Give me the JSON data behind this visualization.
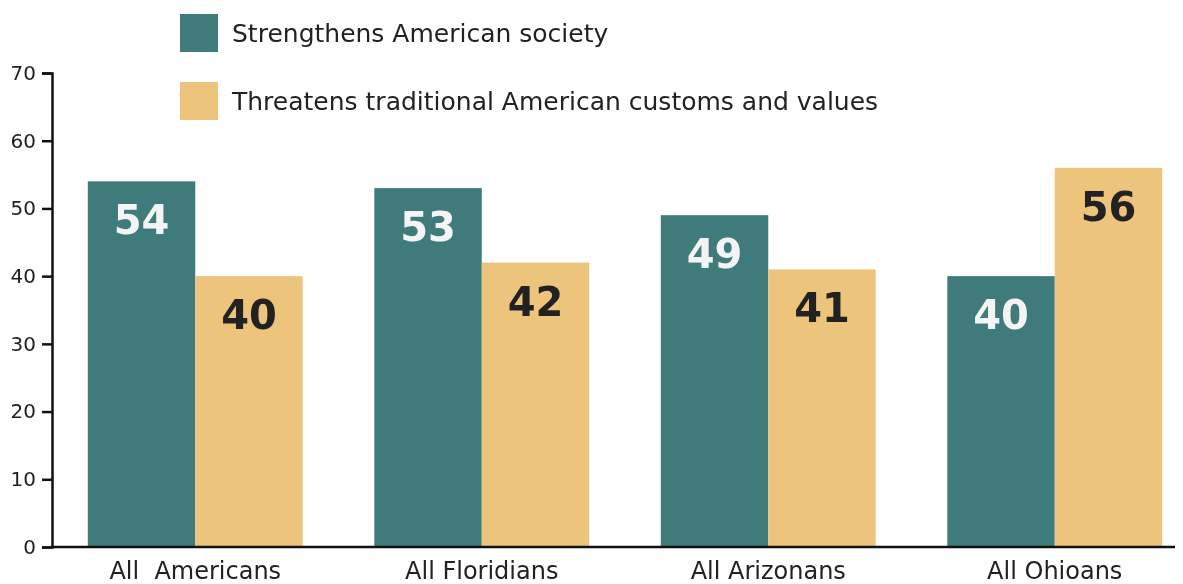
{
  "chart_data": {
    "type": "bar",
    "categories": [
      "All  Americans",
      "All Floridians",
      "All Arizonans",
      "All Ohioans"
    ],
    "series": [
      {
        "name": "Strengthens American society",
        "color": "#3e7b7a",
        "values": [
          54,
          53,
          49,
          40
        ]
      },
      {
        "name": "Threatens traditional American customs and values",
        "color": "#ecc47b",
        "values": [
          40,
          42,
          41,
          56
        ]
      }
    ],
    "ylim": [
      0,
      70
    ],
    "yticks": [
      0,
      10,
      20,
      30,
      40,
      50,
      60,
      70
    ],
    "data_labels": true,
    "legend": "top",
    "grid": false
  }
}
